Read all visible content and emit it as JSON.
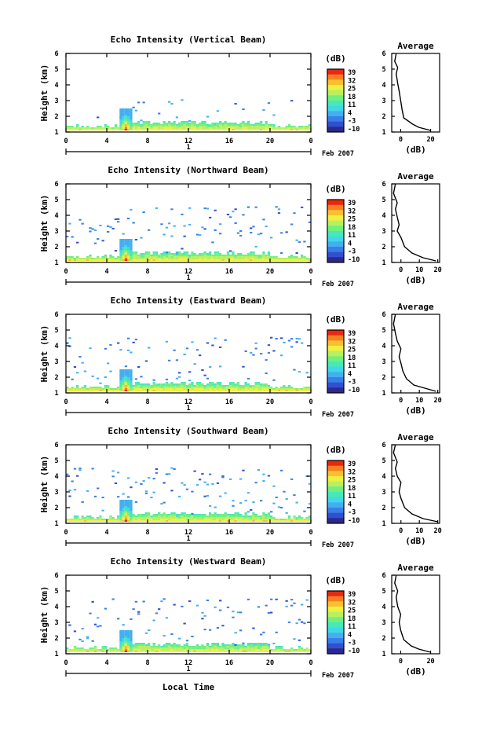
{
  "figure": {
    "xlabel": "Local Time",
    "date_label": "Feb 2007",
    "day_label": "1",
    "ylabel": "Height (km)",
    "colorbar_unit": "(dB)",
    "colorbar_ticks": [
      "39",
      "32",
      "25",
      "18",
      "11",
      "4",
      "-3",
      "-10"
    ],
    "avg_title": "Average",
    "avg_xlabel": "(dB)"
  },
  "colors": {
    "scale": [
      "#2a2a8c",
      "#3050d0",
      "#3a7ee8",
      "#42b0f0",
      "#40d8e8",
      "#48e8b8",
      "#70f080",
      "#b8f060",
      "#f0f040",
      "#f8c030",
      "#f88020",
      "#e82810"
    ]
  },
  "chart_data": [
    {
      "type": "heatmap",
      "title": "Echo Intensity (Vertical Beam)",
      "xlabel": "Local Time",
      "ylabel": "Height (km)",
      "x_ticks": [
        "0",
        "4",
        "8",
        "12",
        "16",
        "20",
        "0"
      ],
      "y_ticks": [
        "1",
        "2",
        "3",
        "4",
        "5",
        "6"
      ],
      "xlim": [
        0,
        24
      ],
      "ylim": [
        1,
        6
      ],
      "colorbar": {
        "label": "(dB)",
        "range": [
          -10,
          39
        ]
      },
      "average": {
        "title": "Average",
        "xlabel": "(dB)",
        "x_ticks": [
          "0",
          "20"
        ],
        "xlim": [
          -6,
          26
        ],
        "profile": [
          [
            20,
            1.1
          ],
          [
            12,
            1.3
          ],
          [
            8,
            1.5
          ],
          [
            2,
            1.9
          ],
          [
            1,
            2.4
          ],
          [
            0,
            3.0
          ],
          [
            -1,
            3.6
          ],
          [
            -2,
            4.1
          ],
          [
            -3,
            4.7
          ],
          [
            -2,
            5.1
          ],
          [
            -4,
            5.5
          ],
          [
            -3,
            6.0
          ]
        ]
      }
    },
    {
      "type": "heatmap",
      "title": "Echo Intensity (Northward Beam)",
      "xlabel": "Local Time",
      "ylabel": "Height (km)",
      "x_ticks": [
        "0",
        "4",
        "8",
        "12",
        "16",
        "20",
        "0"
      ],
      "y_ticks": [
        "1",
        "2",
        "3",
        "4",
        "5",
        "6"
      ],
      "xlim": [
        0,
        24
      ],
      "ylim": [
        1,
        6
      ],
      "colorbar": {
        "label": "(dB)",
        "range": [
          -10,
          39
        ]
      },
      "average": {
        "title": "Average",
        "xlabel": "(dB)",
        "x_ticks": [
          "0",
          "10",
          "20"
        ],
        "xlim": [
          -5,
          21
        ],
        "profile": [
          [
            19,
            1.1
          ],
          [
            12,
            1.3
          ],
          [
            6,
            1.6
          ],
          [
            2,
            2.0
          ],
          [
            0,
            2.6
          ],
          [
            -2,
            3.0
          ],
          [
            -1,
            3.4
          ],
          [
            -2,
            3.9
          ],
          [
            -3,
            4.4
          ],
          [
            -2,
            4.8
          ],
          [
            -4,
            5.4
          ],
          [
            -3,
            6.0
          ]
        ]
      }
    },
    {
      "type": "heatmap",
      "title": "Echo Intensity (Eastward Beam)",
      "xlabel": "Local Time",
      "ylabel": "Height (km)",
      "x_ticks": [
        "0",
        "4",
        "8",
        "12",
        "16",
        "20",
        "0"
      ],
      "y_ticks": [
        "1",
        "2",
        "3",
        "4",
        "5",
        "6"
      ],
      "xlim": [
        0,
        24
      ],
      "ylim": [
        1,
        6
      ],
      "colorbar": {
        "label": "(dB)",
        "range": [
          -10,
          39
        ]
      },
      "average": {
        "title": "Average",
        "xlabel": "(dB)",
        "x_ticks": [
          "0",
          "10",
          "20"
        ],
        "xlim": [
          -5,
          21
        ],
        "profile": [
          [
            19,
            1.1
          ],
          [
            13,
            1.3
          ],
          [
            7,
            1.5
          ],
          [
            3,
            1.9
          ],
          [
            1,
            2.4
          ],
          [
            0,
            2.9
          ],
          [
            -1,
            3.3
          ],
          [
            0,
            3.8
          ],
          [
            -2,
            4.3
          ],
          [
            -3,
            4.8
          ],
          [
            -4,
            5.4
          ],
          [
            -3,
            6.0
          ]
        ]
      }
    },
    {
      "type": "heatmap",
      "title": "Echo Intensity (Southward Beam)",
      "xlabel": "Local Time",
      "ylabel": "Height (km)",
      "x_ticks": [
        "0",
        "4",
        "8",
        "12",
        "16",
        "20",
        "0"
      ],
      "y_ticks": [
        "1",
        "2",
        "3",
        "4",
        "5",
        "6"
      ],
      "xlim": [
        0,
        24
      ],
      "ylim": [
        1,
        6
      ],
      "colorbar": {
        "label": "(dB)",
        "range": [
          -10,
          39
        ]
      },
      "average": {
        "title": "Average",
        "xlabel": "(dB)",
        "x_ticks": [
          "0",
          "10",
          "20"
        ],
        "xlim": [
          -5,
          21
        ],
        "profile": [
          [
            20,
            1.1
          ],
          [
            12,
            1.3
          ],
          [
            6,
            1.6
          ],
          [
            2,
            2.0
          ],
          [
            0,
            2.6
          ],
          [
            -1,
            3.0
          ],
          [
            0,
            3.6
          ],
          [
            -2,
            4.0
          ],
          [
            -3,
            4.5
          ],
          [
            -2,
            4.9
          ],
          [
            -4,
            5.5
          ],
          [
            -3,
            6.0
          ]
        ]
      }
    },
    {
      "type": "heatmap",
      "title": "Echo Intensity (Westward Beam)",
      "xlabel": "Local Time",
      "ylabel": "Height (km)",
      "x_ticks": [
        "0",
        "4",
        "8",
        "12",
        "16",
        "20",
        "0"
      ],
      "y_ticks": [
        "1",
        "2",
        "3",
        "4",
        "5",
        "6"
      ],
      "xlim": [
        0,
        24
      ],
      "ylim": [
        1,
        6
      ],
      "colorbar": {
        "label": "(dB)",
        "range": [
          -10,
          39
        ]
      },
      "average": {
        "title": "Average",
        "xlabel": "(dB)",
        "x_ticks": [
          "0",
          "20"
        ],
        "xlim": [
          -6,
          26
        ],
        "profile": [
          [
            20,
            1.1
          ],
          [
            12,
            1.3
          ],
          [
            7,
            1.5
          ],
          [
            2,
            1.9
          ],
          [
            0,
            2.5
          ],
          [
            -1,
            3.0
          ],
          [
            0,
            3.5
          ],
          [
            -2,
            4.0
          ],
          [
            -3,
            4.6
          ],
          [
            -2,
            5.0
          ],
          [
            -4,
            5.5
          ],
          [
            -3,
            6.0
          ]
        ]
      }
    }
  ]
}
